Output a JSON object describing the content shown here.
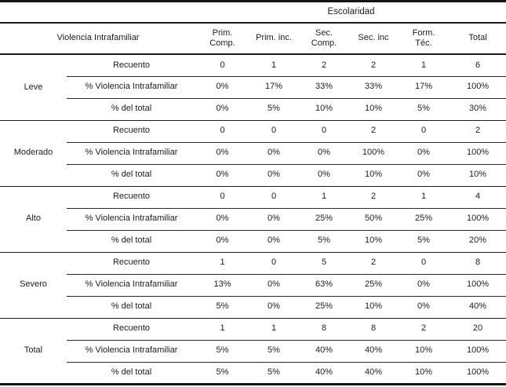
{
  "table": {
    "col_group_header": "Escolaridad",
    "row_dimension_header": "Violencia Intrafamiliar",
    "columns": [
      "Prim.\nComp.",
      "Prim. inc.",
      "Sec.\nComp.",
      "Sec. inc",
      "Form.\nTéc.",
      "Total"
    ],
    "groups": [
      {
        "label": "Leve",
        "rows": [
          {
            "label": "Recuento",
            "values": [
              "0",
              "1",
              "2",
              "2",
              "1",
              "6"
            ]
          },
          {
            "label": "% Violencia Intrafamiliar",
            "values": [
              "0%",
              "17%",
              "33%",
              "33%",
              "17%",
              "100%"
            ]
          },
          {
            "label": "% del total",
            "values": [
              "0%",
              "5%",
              "10%",
              "10%",
              "5%",
              "30%"
            ]
          }
        ]
      },
      {
        "label": "Moderado",
        "rows": [
          {
            "label": "Recuento",
            "values": [
              "0",
              "0",
              "0",
              "2",
              "0",
              "2"
            ]
          },
          {
            "label": "% Violencia Intrafamiliar",
            "values": [
              "0%",
              "0%",
              "0%",
              "100%",
              "0%",
              "100%"
            ]
          },
          {
            "label": "% del total",
            "values": [
              "0%",
              "0%",
              "0%",
              "10%",
              "0%",
              "10%"
            ]
          }
        ]
      },
      {
        "label": "Alto",
        "rows": [
          {
            "label": "Recuento",
            "values": [
              "0",
              "0",
              "1",
              "2",
              "1",
              "4"
            ]
          },
          {
            "label": "% Violencia Intrafamiliar",
            "values": [
              "0%",
              "0%",
              "25%",
              "50%",
              "25%",
              "100%"
            ]
          },
          {
            "label": "% del total",
            "values": [
              "0%",
              "0%",
              "5%",
              "10%",
              "5%",
              "20%"
            ]
          }
        ]
      },
      {
        "label": "Severo",
        "rows": [
          {
            "label": "Recuento",
            "values": [
              "1",
              "0",
              "5",
              "2",
              "0",
              "8"
            ]
          },
          {
            "label": "% Violencia Intrafamiliar",
            "values": [
              "13%",
              "0%",
              "63%",
              "25%",
              "0%",
              "100%"
            ]
          },
          {
            "label": "% del total",
            "values": [
              "5%",
              "0%",
              "25%",
              "10%",
              "0%",
              "40%"
            ]
          }
        ]
      },
      {
        "label": "Total",
        "rows": [
          {
            "label": "Recuento",
            "values": [
              "1",
              "1",
              "8",
              "8",
              "2",
              "20"
            ]
          },
          {
            "label": "% Violencia Intrafamiliar",
            "values": [
              "5%",
              "5%",
              "40%",
              "40%",
              "10%",
              "100%"
            ]
          },
          {
            "label": "% del total",
            "values": [
              "5%",
              "5%",
              "40%",
              "40%",
              "10%",
              "100%"
            ]
          }
        ]
      }
    ]
  }
}
